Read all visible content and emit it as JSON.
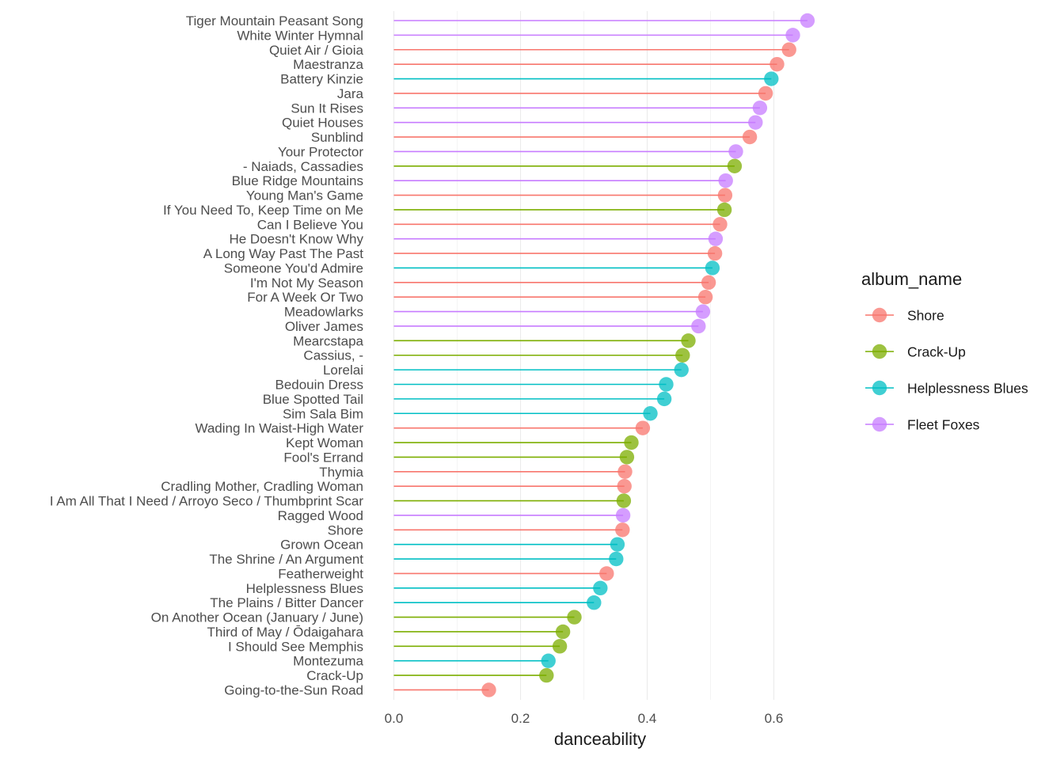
{
  "chart_data": {
    "type": "lollipop",
    "xlabel": "danceability",
    "ylabel": "",
    "xlim": [
      0,
      0.65
    ],
    "x_ticks": [
      0.0,
      0.2,
      0.4,
      0.6
    ],
    "x_tick_labels": [
      "0.0",
      "0.2",
      "0.4",
      "0.6"
    ],
    "grid": true,
    "legend": {
      "title": "album_name",
      "position": "right",
      "entries": [
        {
          "name": "Shore",
          "color": "#F8766D"
        },
        {
          "name": "Crack-Up",
          "color": "#7CAE00"
        },
        {
          "name": "Helplessness Blues",
          "color": "#00BFC4"
        },
        {
          "name": "Fleet Foxes",
          "color": "#C77CFF"
        }
      ]
    },
    "points": [
      {
        "track": "Tiger Mountain Peasant Song",
        "album": "Fleet Foxes",
        "danceability": 0.653
      },
      {
        "track": "White Winter Hymnal",
        "album": "Fleet Foxes",
        "danceability": 0.63
      },
      {
        "track": "Quiet Air / Gioia",
        "album": "Shore",
        "danceability": 0.624
      },
      {
        "track": "Maestranza",
        "album": "Shore",
        "danceability": 0.605
      },
      {
        "track": "Battery Kinzie",
        "album": "Helplessness Blues",
        "danceability": 0.596
      },
      {
        "track": "Jara",
        "album": "Shore",
        "danceability": 0.587
      },
      {
        "track": "Sun It Rises",
        "album": "Fleet Foxes",
        "danceability": 0.578
      },
      {
        "track": "Quiet Houses",
        "album": "Fleet Foxes",
        "danceability": 0.571
      },
      {
        "track": "Sunblind",
        "album": "Shore",
        "danceability": 0.562
      },
      {
        "track": "Your Protector",
        "album": "Fleet Foxes",
        "danceability": 0.54
      },
      {
        "track": "- Naiads, Cassadies",
        "album": "Crack-Up",
        "danceability": 0.538
      },
      {
        "track": "Blue Ridge Mountains",
        "album": "Fleet Foxes",
        "danceability": 0.524
      },
      {
        "track": "Young Man's Game",
        "album": "Shore",
        "danceability": 0.523
      },
      {
        "track": "If You Need To, Keep Time on Me",
        "album": "Crack-Up",
        "danceability": 0.522
      },
      {
        "track": "Can I Believe You",
        "album": "Shore",
        "danceability": 0.515
      },
      {
        "track": "He Doesn't Know Why",
        "album": "Fleet Foxes",
        "danceability": 0.508
      },
      {
        "track": "A Long Way Past The Past",
        "album": "Shore",
        "danceability": 0.507
      },
      {
        "track": "Someone You'd Admire",
        "album": "Helplessness Blues",
        "danceability": 0.503
      },
      {
        "track": "I'm Not My Season",
        "album": "Shore",
        "danceability": 0.497
      },
      {
        "track": "For A Week Or Two",
        "album": "Shore",
        "danceability": 0.492
      },
      {
        "track": "Meadowlarks",
        "album": "Fleet Foxes",
        "danceability": 0.488
      },
      {
        "track": "Oliver James",
        "album": "Fleet Foxes",
        "danceability": 0.481
      },
      {
        "track": "Mearcstapa",
        "album": "Crack-Up",
        "danceability": 0.465
      },
      {
        "track": "Cassius, -",
        "album": "Crack-Up",
        "danceability": 0.456
      },
      {
        "track": "Lorelai",
        "album": "Helplessness Blues",
        "danceability": 0.454
      },
      {
        "track": "Bedouin Dress",
        "album": "Helplessness Blues",
        "danceability": 0.43
      },
      {
        "track": "Blue Spotted Tail",
        "album": "Helplessness Blues",
        "danceability": 0.427
      },
      {
        "track": "Sim Sala Bim",
        "album": "Helplessness Blues",
        "danceability": 0.405
      },
      {
        "track": "Wading In Waist-High Water",
        "album": "Shore",
        "danceability": 0.393
      },
      {
        "track": "Kept Woman",
        "album": "Crack-Up",
        "danceability": 0.375
      },
      {
        "track": "Fool's Errand",
        "album": "Crack-Up",
        "danceability": 0.368
      },
      {
        "track": "Thymia",
        "album": "Shore",
        "danceability": 0.365
      },
      {
        "track": "Cradling Mother, Cradling Woman",
        "album": "Shore",
        "danceability": 0.364
      },
      {
        "track": "I Am All That I Need / Arroyo Seco / Thumbprint Scar",
        "album": "Crack-Up",
        "danceability": 0.363
      },
      {
        "track": "Ragged Wood",
        "album": "Fleet Foxes",
        "danceability": 0.362
      },
      {
        "track": "Shore",
        "album": "Shore",
        "danceability": 0.361
      },
      {
        "track": "Grown Ocean",
        "album": "Helplessness Blues",
        "danceability": 0.353
      },
      {
        "track": "The Shrine / An Argument",
        "album": "Helplessness Blues",
        "danceability": 0.351
      },
      {
        "track": "Featherweight",
        "album": "Shore",
        "danceability": 0.336
      },
      {
        "track": "Helplessness Blues",
        "album": "Helplessness Blues",
        "danceability": 0.326
      },
      {
        "track": "The Plains / Bitter Dancer",
        "album": "Helplessness Blues",
        "danceability": 0.316
      },
      {
        "track": "On Another Ocean (January / June)",
        "album": "Crack-Up",
        "danceability": 0.285
      },
      {
        "track": "Third of May / Ōdaigahara",
        "album": "Crack-Up",
        "danceability": 0.267
      },
      {
        "track": "I Should See Memphis",
        "album": "Crack-Up",
        "danceability": 0.262
      },
      {
        "track": "Montezuma",
        "album": "Helplessness Blues",
        "danceability": 0.244
      },
      {
        "track": "Crack-Up",
        "album": "Crack-Up",
        "danceability": 0.241
      },
      {
        "track": "Going-to-the-Sun Road",
        "album": "Shore",
        "danceability": 0.15
      }
    ]
  }
}
